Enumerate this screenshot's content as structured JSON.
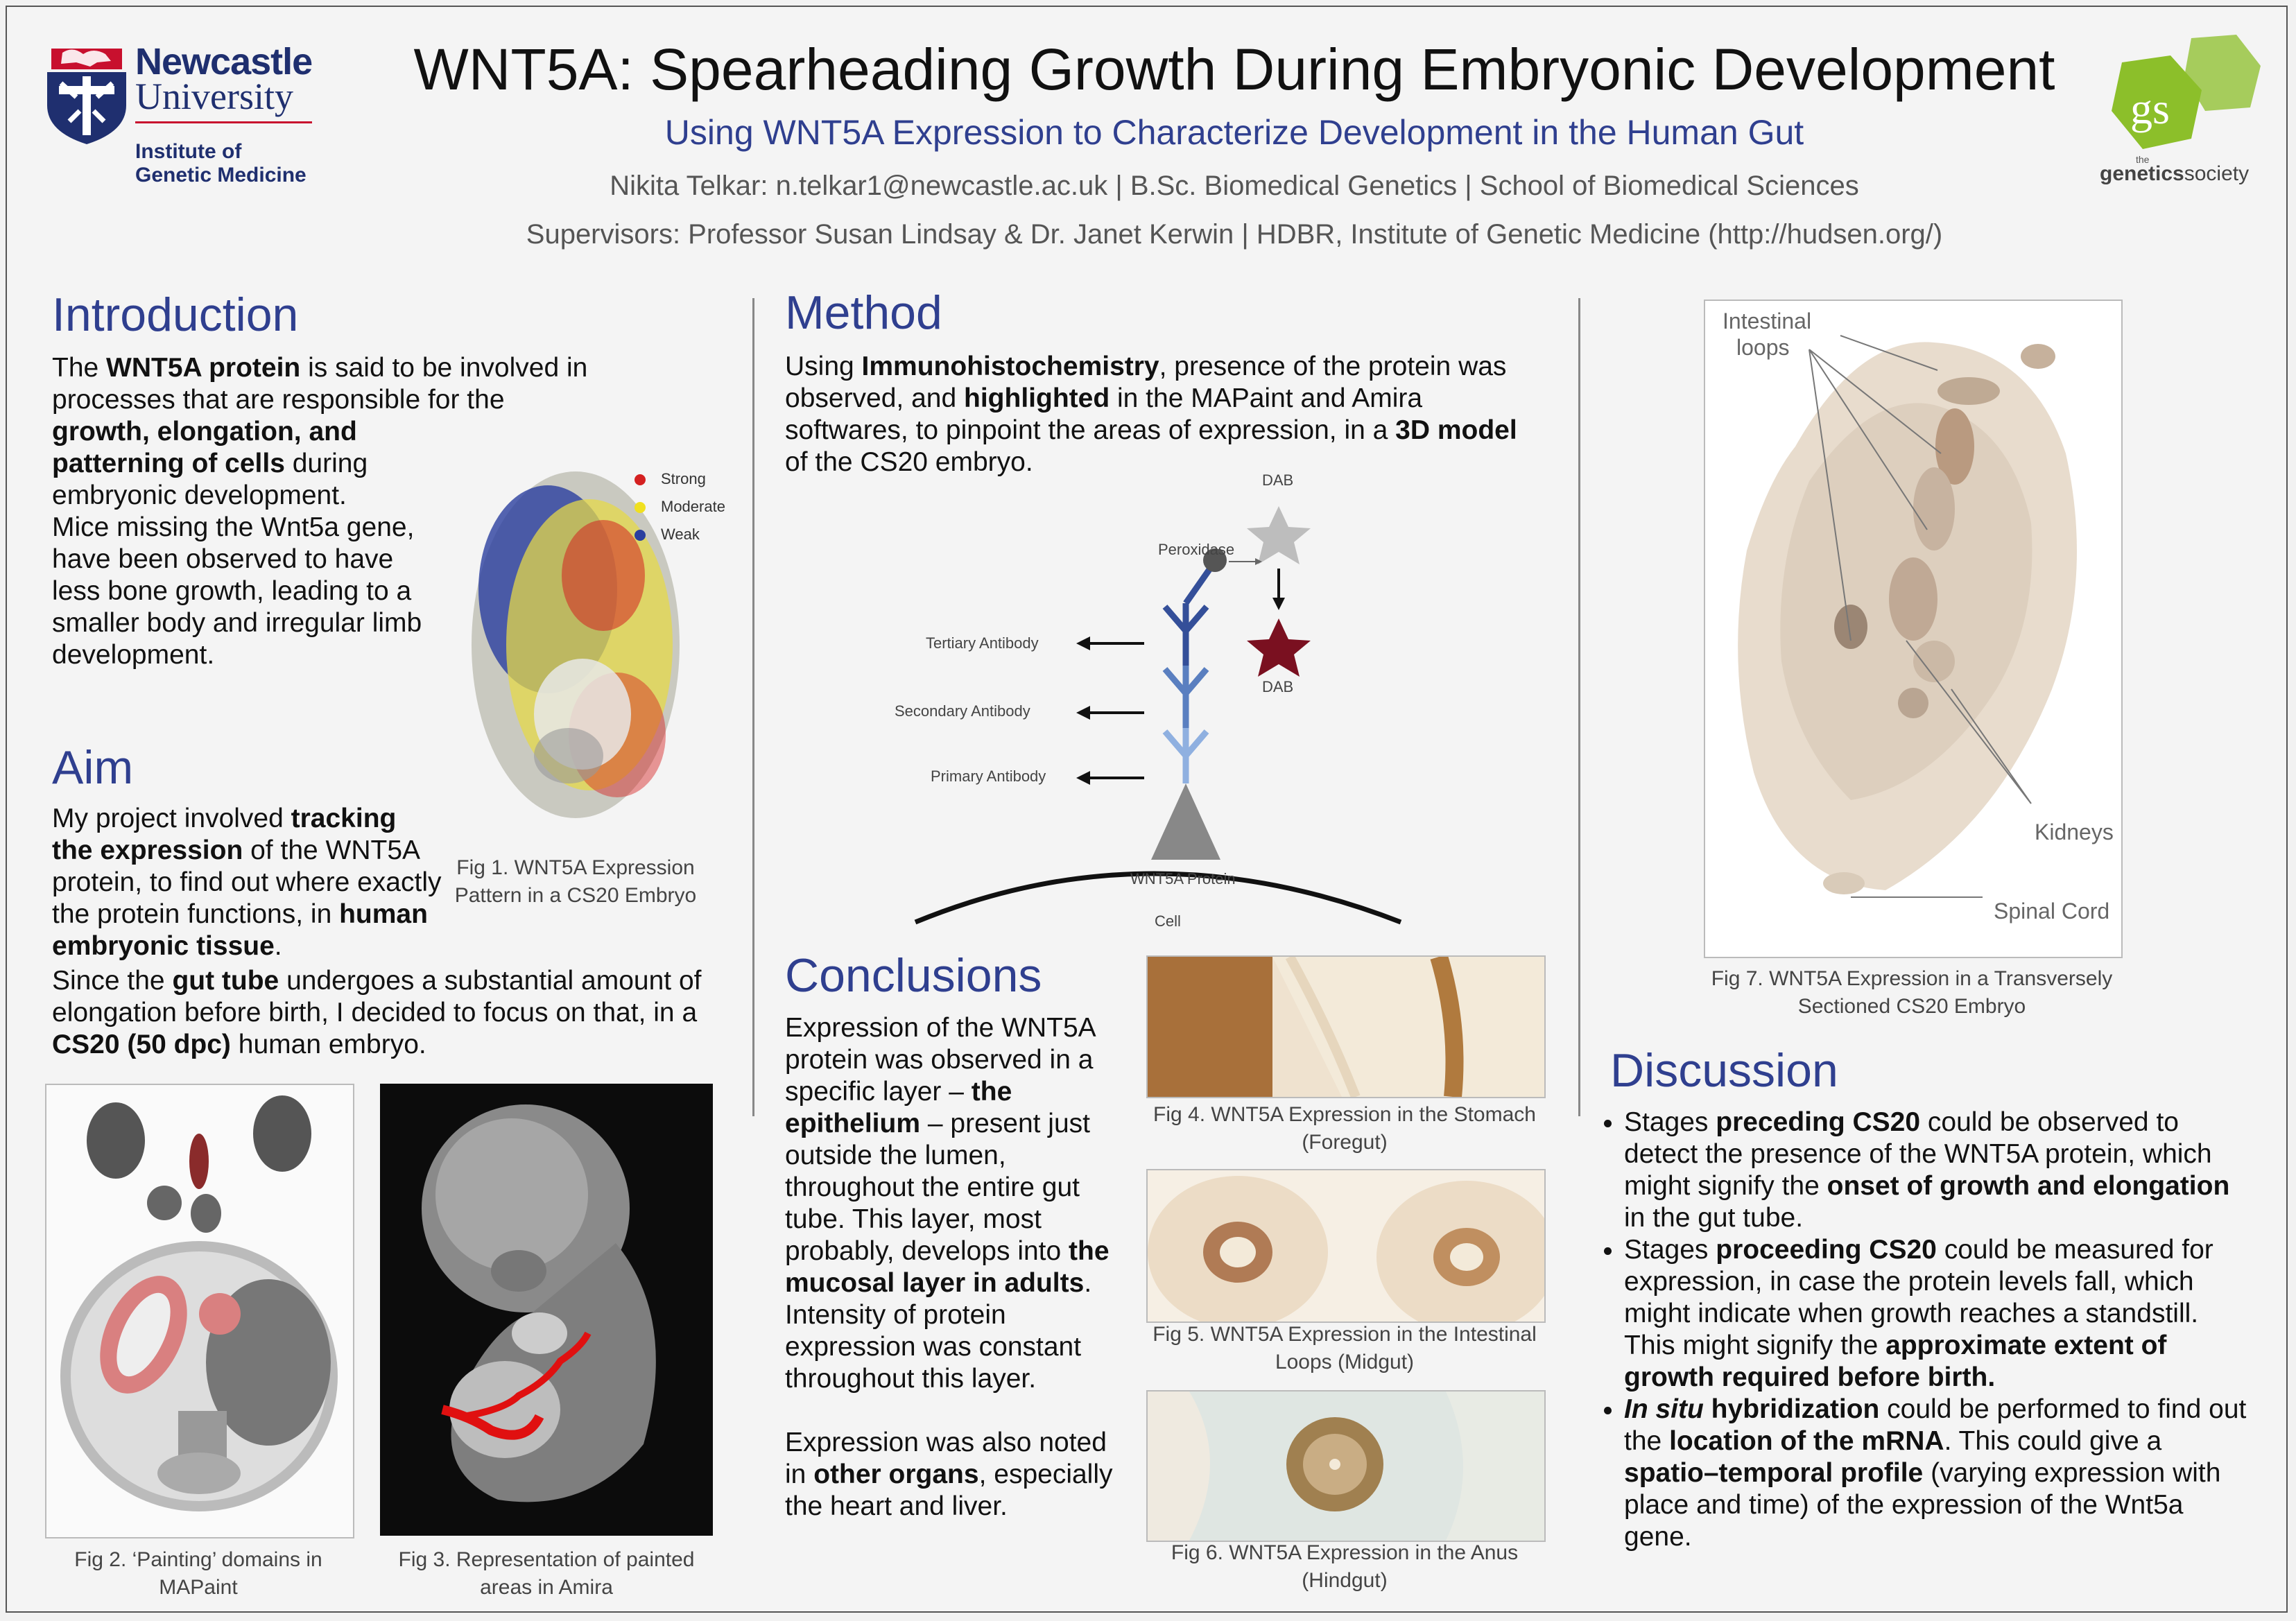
{
  "header": {
    "title": "WNT5A: Spearheading Growth During Embryonic Development",
    "subtitle": "Using WNT5A Expression to Characterize Development in the Human Gut",
    "authors": "Nikita Telkar: n.telkar1@newcastle.ac.uk | B.Sc. Biomedical Genetics | School of Biomedical Sciences",
    "supervisors": "Supervisors: Professor Susan Lindsay & Dr. Janet Kerwin | HDBR, Institute of Genetic Medicine (http://hudsen.org/)"
  },
  "logos": {
    "newcastle_line1": "Newcastle",
    "newcastle_line2": "University",
    "institute_line1": "Institute of",
    "institute_line2": "Genetic Medicine",
    "gs_mark": "gs",
    "gs_small": "the",
    "gs_name_bold": "genetics",
    "gs_name_rest": "society"
  },
  "introduction": {
    "heading": "Introduction",
    "p1_a": "The ",
    "p1_b": "WNT5A protein",
    "p1_c": " is said to be involved in processes that are responsible for the ",
    "p1_d": "growth, elongation, and patterning of cells",
    "p1_e": " during embryonic development.",
    "p2": "Mice missing the Wnt5a gene, have been observed to have less bone growth, leading to a smaller body and irregular limb development."
  },
  "fig1": {
    "caption": "Fig 1. WNT5A Expression Pattern in a CS20 Embryo",
    "legend": [
      {
        "label": "Strong",
        "color": "#d42020"
      },
      {
        "label": "Moderate",
        "color": "#f0e020"
      },
      {
        "label": "Weak",
        "color": "#2a3f9f"
      }
    ]
  },
  "aim": {
    "heading": "Aim",
    "a": "My project involved ",
    "b": "tracking the expression",
    "c": " of the WNT5A protein, to find out where exactly the protein functions, in ",
    "d": "human embryonic tissue",
    "e": ".",
    "f": "Since the ",
    "g": "gut tube",
    "h": " undergoes a substantial amount of elongation before birth, I decided to focus on that, in a ",
    "i": "CS20 (50 dpc)",
    "j": " human embryo."
  },
  "fig2": {
    "caption": "Fig 2. ‘Painting’ domains in MAPaint"
  },
  "fig3": {
    "caption": "Fig 3. Representation of painted areas in Amira"
  },
  "method": {
    "heading": "Method",
    "a": "Using ",
    "b": "Immunohistochemistry",
    "c": ", presence of the protein was observed, and ",
    "d": "highlighted",
    "e": " in the MAPaint and Amira softwares, to pinpoint the areas of expression, in a ",
    "f": "3D model",
    "g": " of the CS20 embryo.",
    "diagram": {
      "dab_top": "DAB",
      "peroxidase": "Peroxidase",
      "dab_bottom": "DAB",
      "tertiary": "Tertiary Antibody",
      "secondary": "Secondary Antibody",
      "primary": "Primary Antibody",
      "protein": "WNT5A Protein",
      "cell": "Cell"
    }
  },
  "conclusions": {
    "heading": "Conclusions",
    "a": "Expression of the WNT5A protein was observed in a specific layer – ",
    "b": "the epithelium",
    "c": " – present just outside the lumen, throughout the entire gut tube. This layer, most probably, develops into ",
    "d": "the mucosal layer in adults",
    "e": ".",
    "f": "Intensity of protein expression was constant throughout this layer.",
    "g": "Expression was also noted in ",
    "h": "other organs",
    "i": ", especially the heart and liver."
  },
  "fig4": {
    "caption": "Fig 4. WNT5A Expression in the Stomach (Foregut)"
  },
  "fig5": {
    "caption": "Fig 5. WNT5A Expression in the Intestinal Loops (Midgut)"
  },
  "fig6": {
    "caption": "Fig 6. WNT5A Expression in the Anus (Hindgut)"
  },
  "fig7": {
    "caption": "Fig 7. WNT5A Expression in a Transversely Sectioned CS20 Embryo",
    "label_loops_1": "Intestinal",
    "label_loops_2": "loops",
    "label_kidneys": "Kidneys",
    "label_spinal": "Spinal Cord"
  },
  "discussion": {
    "heading": "Discussion",
    "b1_a": "Stages ",
    "b1_b": "preceding CS20",
    "b1_c": " could be observed to detect the presence of the WNT5A protein, which might signify the ",
    "b1_d": "onset of growth and elongation",
    "b1_e": " in the gut tube.",
    "b2_a": "Stages ",
    "b2_b": "proceeding CS20",
    "b2_c": " could be measured for expression, in case the protein levels fall, which might indicate when growth reaches a standstill. This might signify the ",
    "b2_d": "approximate extent of growth required before birth.",
    "b3_a": "In situ",
    "b3_b": " hybridization",
    "b3_c": " could be performed to find out the ",
    "b3_d": "location of the mRNA",
    "b3_e": ". This could give a ",
    "b3_f": "spatio–temporal profile",
    "b3_g": " (varying expression with place and time) of the expression of the Wnt5a gene."
  },
  "colors": {
    "heading_blue": "#2f3f8f",
    "nu_navy": "#1f2f6f",
    "gs_green": "#8cbf2a",
    "dab_brown": "#7a1020",
    "antibody_blue": "#3f5fa0"
  }
}
